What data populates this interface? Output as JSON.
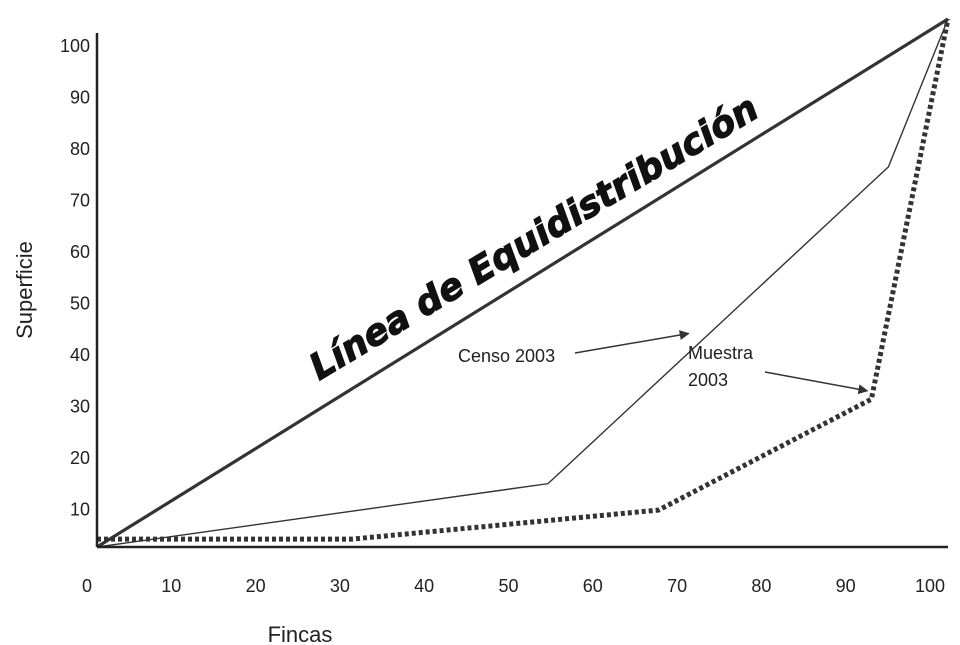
{
  "chart_data": {
    "type": "line",
    "xlabel": "Fincas",
    "ylabel": "Superficie",
    "xlim": [
      0,
      100
    ],
    "ylim": [
      0,
      100
    ],
    "x_ticks": [
      "0",
      "10",
      "20",
      "30",
      "40",
      "50",
      "60",
      "70",
      "80",
      "90",
      "100"
    ],
    "y_ticks": [
      "10",
      "20",
      "30",
      "40",
      "50",
      "60",
      "70",
      "80",
      "90",
      "100"
    ],
    "grid": false,
    "legend": "none",
    "series": [
      {
        "name": "Línea de Equidistribución",
        "style": "solid-thick",
        "color": "#333333",
        "points": [
          [
            0,
            0
          ],
          [
            100,
            100
          ]
        ]
      },
      {
        "name": "Censo 2003",
        "style": "solid-thin",
        "color": "#333333",
        "points": [
          [
            0,
            0
          ],
          [
            53,
            12
          ],
          [
            93,
            72
          ],
          [
            100,
            100
          ]
        ]
      },
      {
        "name": "Muestra 2003",
        "style": "dotted-thick",
        "color": "#333333",
        "points": [
          [
            0,
            1.5
          ],
          [
            30,
            1.5
          ],
          [
            66,
            7
          ],
          [
            91,
            28
          ],
          [
            100,
            100
          ]
        ]
      }
    ],
    "annotations": [
      {
        "text": "Censo 2003",
        "arrow_to": [
          70,
          41
        ]
      },
      {
        "text": "Muestra 2003",
        "lines": [
          "Muestra",
          "2003"
        ],
        "arrow_to": [
          91,
          29
        ]
      },
      {
        "text": "Línea de Equidistribución",
        "on_series": "Línea de Equidistribución"
      }
    ]
  }
}
